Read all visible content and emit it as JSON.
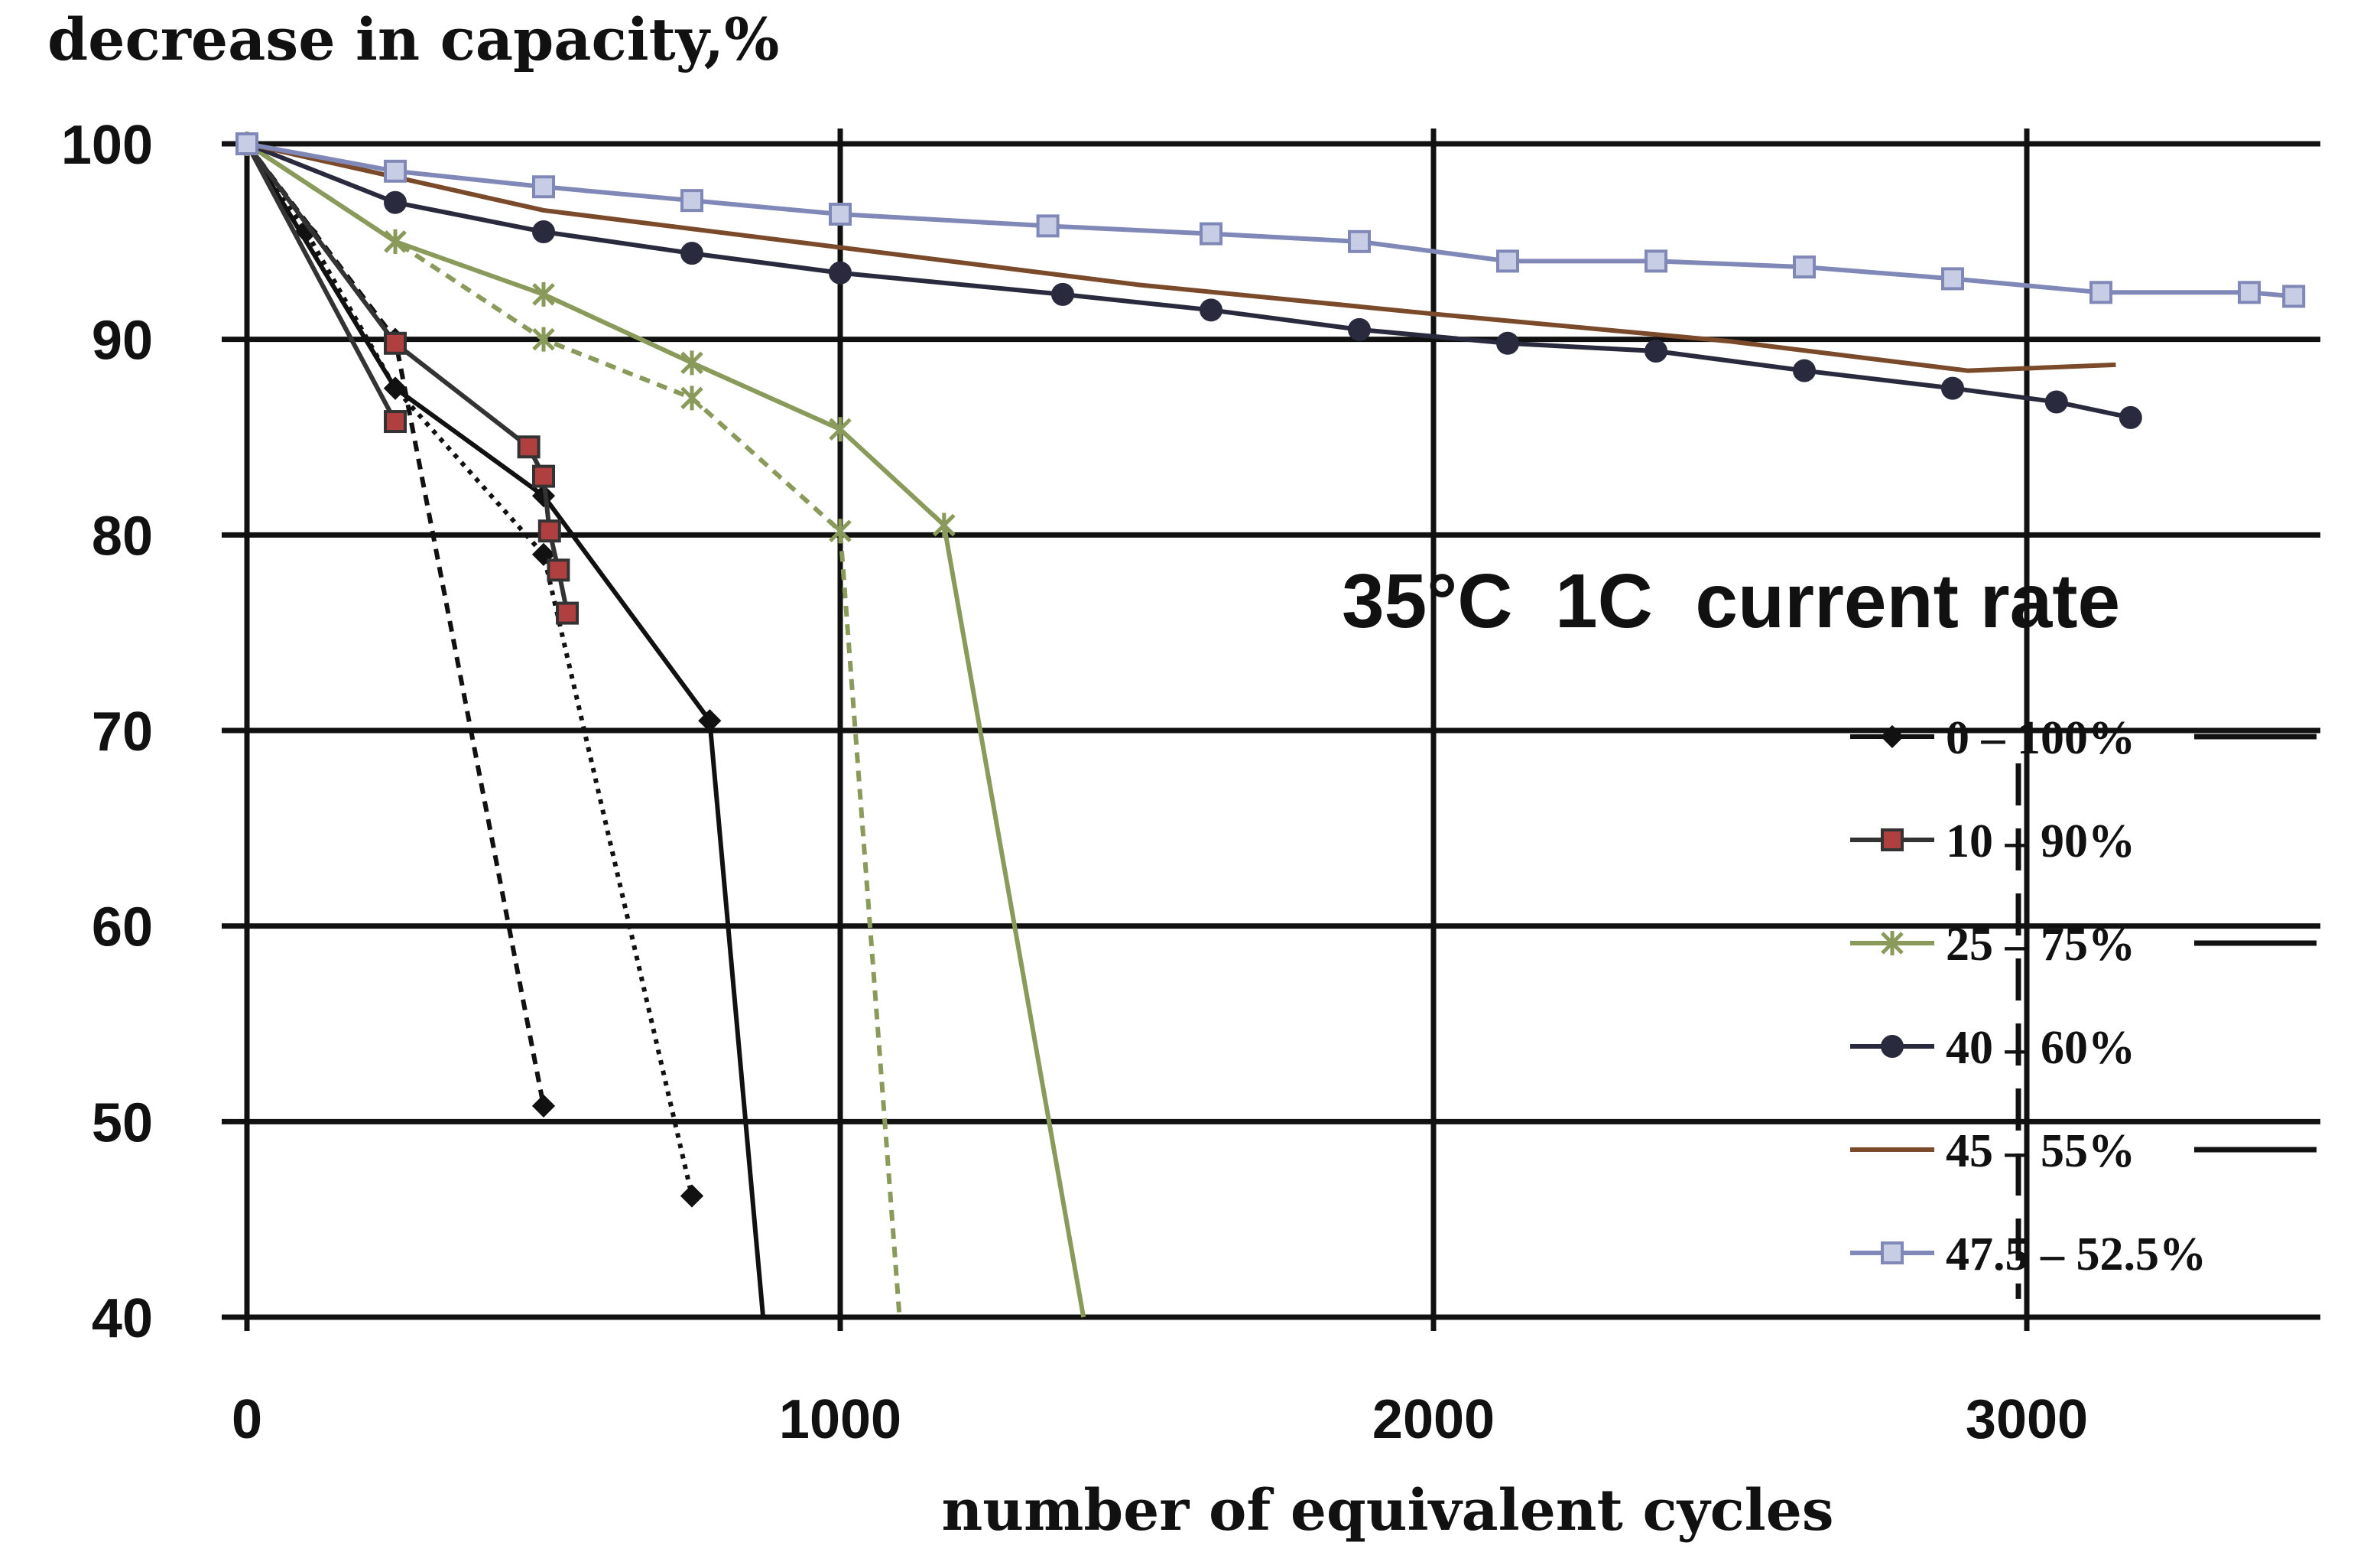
{
  "chart_data": {
    "type": "line",
    "ylabel": "decrease in capacity,%",
    "xlabel": "number of equivalent cycles",
    "annotation": "35°C  1C  current rate",
    "xlim": [
      0,
      3500
    ],
    "ylim": [
      40,
      100
    ],
    "xticks": [
      "0",
      "1000",
      "2000",
      "3000"
    ],
    "xtick_values": [
      0,
      1000,
      2000,
      3000
    ],
    "yticks": [
      "100",
      "90",
      "80",
      "70",
      "60",
      "50",
      "40"
    ],
    "ytick_values": [
      100,
      90,
      80,
      70,
      60,
      50,
      40
    ],
    "grid": true,
    "legend_position": "right",
    "series": [
      {
        "name": "0 – 100%",
        "marker": "diamond",
        "color": "#111111",
        "fill": "#111111",
        "dash": "none",
        "x": [
          0,
          250,
          500,
          780,
          870
        ],
        "y": [
          100,
          87.5,
          82,
          70.5,
          40
        ]
      },
      {
        "name": "0 – 100%",
        "marker": "diamond",
        "color": "#111111",
        "fill": "#111111",
        "dash": "14,10",
        "x": [
          0,
          250,
          500
        ],
        "y": [
          100,
          90,
          50.8
        ]
      },
      {
        "name": "0 – 100%",
        "marker": "diamond",
        "color": "#111111",
        "fill": "#111111",
        "dash": "6,8",
        "x": [
          0,
          100,
          250,
          500,
          750
        ],
        "y": [
          100,
          95.5,
          87.5,
          79,
          46.2
        ]
      },
      {
        "name": "10 – 90%",
        "marker": "square",
        "color": "#333333",
        "fill": "#b04040",
        "dash": "none",
        "x": [
          0,
          250,
          475,
          500,
          510,
          525,
          540
        ],
        "y": [
          100,
          89.8,
          84.5,
          83,
          80.2,
          78.2,
          76
        ]
      },
      {
        "name": "10 – 90%",
        "marker": "square",
        "color": "#333333",
        "fill": "#b04040",
        "dash": "none",
        "x": [
          0,
          250
        ],
        "y": [
          100,
          85.8
        ]
      },
      {
        "name": "25 – 75%",
        "marker": "triangle",
        "color": "#8a9a5b",
        "fill": "#8a9a5b",
        "dash": "none",
        "x": [
          0,
          250,
          500,
          750,
          1000,
          1175,
          1410
        ],
        "y": [
          100,
          95,
          92.3,
          88.8,
          85.4,
          80.5,
          40
        ]
      },
      {
        "name": "25 – 75%",
        "marker": "triangle",
        "color": "#8a9a5b",
        "fill": "#8a9a5b",
        "dash": "14,10",
        "x": [
          0,
          250,
          500,
          750,
          1000,
          1100
        ],
        "y": [
          100,
          95,
          90,
          87,
          80.2,
          40
        ]
      },
      {
        "name": "40 – 60%",
        "marker": "circle",
        "color": "#2a2a3e",
        "fill": "#2a2a3e",
        "dash": "none",
        "x": [
          0,
          250,
          500,
          750,
          1000,
          1375,
          1625,
          1875,
          2125,
          2375,
          2625,
          2875,
          3050,
          3175
        ],
        "y": [
          100,
          97,
          95.5,
          94.4,
          93.4,
          92.3,
          91.5,
          90.5,
          89.8,
          89.4,
          88.4,
          87.5,
          86.8,
          86
        ]
      },
      {
        "name": "45 – 55%",
        "marker": "dash",
        "color": "#7a4a2a",
        "fill": "#7a4a2a",
        "dash": "none",
        "x": [
          0,
          500,
          1000,
          1500,
          2000,
          2500,
          2900,
          3150
        ],
        "y": [
          100,
          96.6,
          94.7,
          92.8,
          91.3,
          89.9,
          88.4,
          88.7
        ]
      },
      {
        "name": "47.5 – 52.5%",
        "marker": "square-open",
        "color": "#8088b8",
        "fill": "#c8cde6",
        "dash": "none",
        "x": [
          0,
          250,
          500,
          750,
          1000,
          1350,
          1625,
          1875,
          2125,
          2375,
          2625,
          2875,
          3125,
          3375,
          3450
        ],
        "y": [
          100,
          98.6,
          97.8,
          97.1,
          96.4,
          95.8,
          95.4,
          95,
          94,
          94,
          93.7,
          93.1,
          92.4,
          92.4,
          92.2
        ]
      }
    ],
    "legend": [
      {
        "label": "0 – 100%",
        "marker": "diamond",
        "color": "#111111",
        "fill": "#111111"
      },
      {
        "label": "10 – 90%",
        "marker": "square",
        "color": "#333333",
        "fill": "#b04040"
      },
      {
        "label": "25 – 75%",
        "marker": "triangle",
        "color": "#8a9a5b",
        "fill": "#8a9a5b"
      },
      {
        "label": "40 – 60%",
        "marker": "circle",
        "color": "#2a2a3e",
        "fill": "#2a2a3e"
      },
      {
        "label": "45 – 55%",
        "marker": "dash",
        "color": "#7a4a2a",
        "fill": "#7a4a2a"
      },
      {
        "label": "47.5 – 52.5%",
        "marker": "square-open",
        "color": "#8088b8",
        "fill": "#c8cde6"
      }
    ],
    "legend_line_styles": [
      "solid",
      "dashed",
      "solid",
      "dashed",
      "solid",
      "dashed"
    ]
  }
}
